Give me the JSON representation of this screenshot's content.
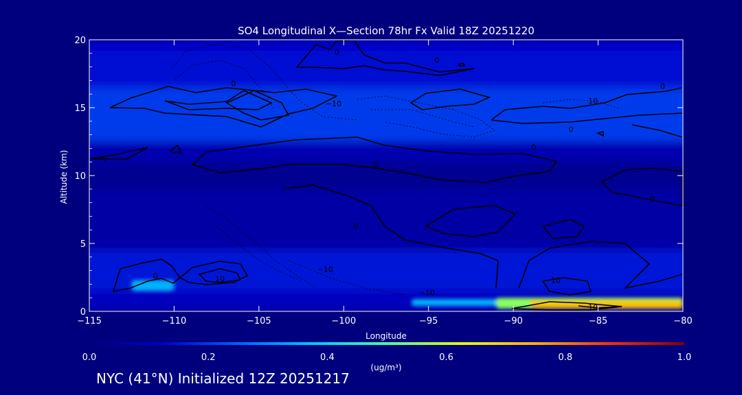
{
  "chart_data": {
    "type": "heatmap",
    "title": "SO4 Longitudinal X—Section 78hr  Fx Valid 18Z 20251220",
    "xlabel": "Longitude",
    "ylabel": "Altitude (km)",
    "xlim": [
      -115,
      -80
    ],
    "ylim": [
      0,
      20
    ],
    "x_ticks": [
      "−115",
      "−110",
      "−105",
      "−100",
      "−95",
      "−90",
      "−85",
      "−80"
    ],
    "y_ticks": [
      "0",
      "5",
      "10",
      "15",
      "20"
    ],
    "colorbar": {
      "label": "(ug/m³)",
      "min": 0.0,
      "max": 1.0,
      "ticks": [
        "0.0",
        "0.2",
        "0.4",
        "0.6",
        "0.8",
        "1.0"
      ],
      "colors": [
        "#00007f",
        "#0000cc",
        "#0060ff",
        "#00c8ff",
        "#4dff9a",
        "#e6ff00",
        "#ffb000",
        "#ff3000",
        "#7f0000"
      ]
    },
    "concentration_bands": [
      {
        "alt_from": 0,
        "alt_to": 1.5,
        "value": 0.1
      },
      {
        "alt_from": 1.5,
        "alt_to": 4.5,
        "value": 0.15
      },
      {
        "alt_from": 4.5,
        "alt_to": 9,
        "value": 0.06
      },
      {
        "alt_from": 9,
        "alt_to": 11,
        "value": 0.03
      },
      {
        "alt_from": 11,
        "alt_to": 12.5,
        "value": 0.08
      },
      {
        "alt_from": 12.5,
        "alt_to": 16.5,
        "value": 0.2
      },
      {
        "alt_from": 16.5,
        "alt_to": 19.2,
        "value": 0.14
      },
      {
        "alt_from": 19.2,
        "alt_to": 20,
        "value": 0.12
      }
    ],
    "hotspots": [
      {
        "lon_from": -96,
        "lon_to": -80,
        "alt_from": 0.4,
        "alt_to": 0.9,
        "value": 0.35
      },
      {
        "lon_from": -91,
        "lon_to": -80,
        "alt_from": 0.2,
        "alt_to": 1.0,
        "value": 0.55
      },
      {
        "lon_from": -89,
        "lon_to": -80,
        "alt_from": 0.2,
        "alt_to": 0.8,
        "value": 0.72
      },
      {
        "lon_from": -112.5,
        "lon_to": -110,
        "alt_from": 1.5,
        "alt_to": 2.3,
        "value": 0.35
      }
    ],
    "contour_labels": [
      {
        "text": "0",
        "lon": -100.4,
        "alt": 19.1
      },
      {
        "text": "0",
        "lon": -94.5,
        "alt": 18.5
      },
      {
        "text": "0",
        "lon": -106.5,
        "alt": 16.8
      },
      {
        "text": "−10",
        "lon": -100.6,
        "alt": 15.3
      },
      {
        "text": "10",
        "lon": -85.3,
        "alt": 15.5
      },
      {
        "text": "0",
        "lon": -81.2,
        "alt": 16.6
      },
      {
        "text": "0",
        "lon": -86.6,
        "alt": 13.4
      },
      {
        "text": "0",
        "lon": -114.1,
        "alt": 11.3
      },
      {
        "text": "0",
        "lon": -98.1,
        "alt": 10.8
      },
      {
        "text": "0",
        "lon": -88.8,
        "alt": 12.1
      },
      {
        "text": "0",
        "lon": -81.8,
        "alt": 8.3
      },
      {
        "text": "0",
        "lon": -99.3,
        "alt": 6.3
      },
      {
        "text": "0",
        "lon": -111.1,
        "alt": 2.6
      },
      {
        "text": "10",
        "lon": -107.3,
        "alt": 2.4
      },
      {
        "text": "−10",
        "lon": -101.1,
        "alt": 3.1
      },
      {
        "text": "−10",
        "lon": -95.1,
        "alt": 1.4
      },
      {
        "text": "10",
        "lon": -87.5,
        "alt": 2.3
      },
      {
        "text": "10",
        "lon": -85.3,
        "alt": 0.3
      }
    ]
  },
  "footer_text": "NYC (41°N) Initialized 12Z 20251217"
}
